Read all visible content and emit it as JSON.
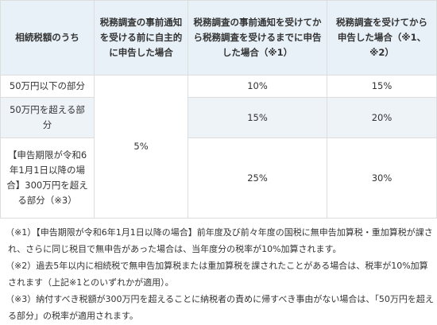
{
  "table": {
    "headers": [
      "相続税額のうち",
      "税務調査の事前通知を受ける前に自主的に申告した場合",
      "税務調査の事前通知を受けてから税務調査を受けるまでに申告した場合（※1）",
      "税務調査を受けてから申告した場合（※1、※2）"
    ],
    "voluntary_rate": "5%",
    "rows": [
      {
        "label": "50万円以下の部分",
        "after_notice": "10%",
        "after_audit": "15%"
      },
      {
        "label": "50万円を超える部分",
        "after_notice": "15%",
        "after_audit": "20%"
      },
      {
        "label": "【申告期限が令和6年1月1日以降の場合】300万円を超える部分（※3）",
        "after_notice": "25%",
        "after_audit": "30%"
      }
    ]
  },
  "notes": [
    "（※1）【申告期限が令和6年1月1日以降の場合】前年度及び前々年度の国税に無申告加算税・重加算税が課され、さらに同じ税目で無申告があった場合は、当年度分の税率が10%加算されます。",
    "（※2）過去5年以内に相続税で無申告加算税または重加算税を課されたことがある場合は、税率が10%加算されます（上記※1とのいずれかが適用）。",
    "（※3）納付すべき税額が300万円を超えることに納税者の責めに帰すべき事由がない場合は、「50万円を超える部分」の税率が適用されます。"
  ],
  "colors": {
    "header_bg": "#e8f1f8",
    "row_alt_bg": "#eef3f8",
    "border": "#dddddd"
  }
}
